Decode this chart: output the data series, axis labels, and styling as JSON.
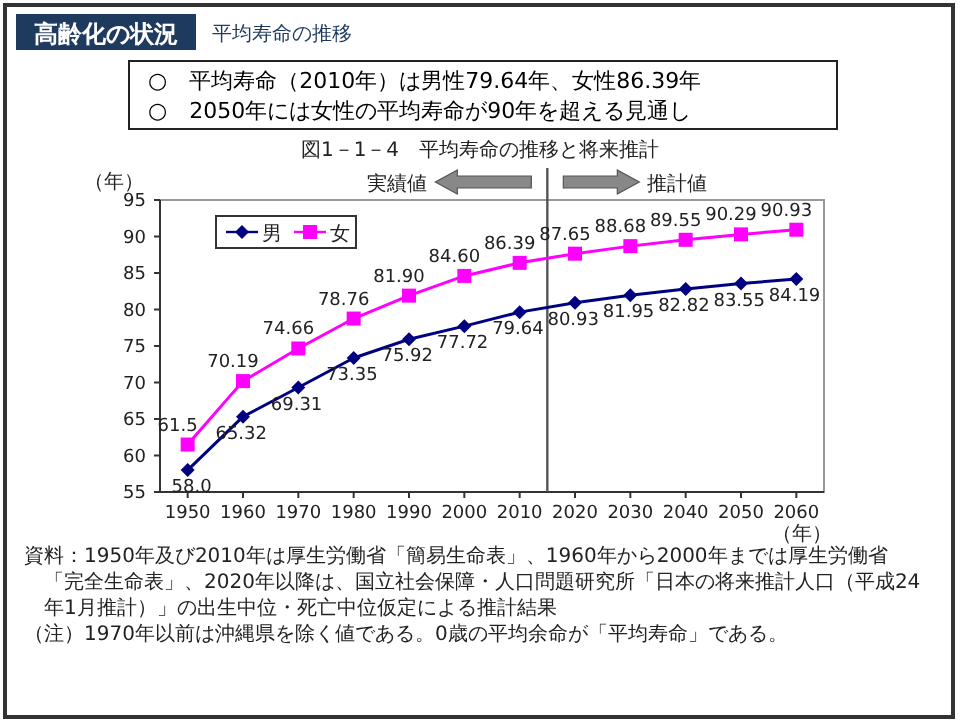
{
  "chart_data": {
    "type": "line",
    "title": "図1－1－4　平均寿命の推移と将来推計",
    "ylabel": "（年）",
    "xlabel": "（年）",
    "x": [
      1950,
      1960,
      1970,
      1980,
      1990,
      2000,
      2010,
      2020,
      2030,
      2040,
      2050,
      2060
    ],
    "xlim": [
      1945,
      2065
    ],
    "xticks": [
      1950,
      1960,
      1970,
      1980,
      1990,
      2000,
      2010,
      2020,
      2030,
      2040,
      2050,
      2060
    ],
    "ylim": [
      55,
      95
    ],
    "yticks": [
      55,
      60,
      65,
      70,
      75,
      80,
      85,
      90,
      95
    ],
    "series": [
      {
        "name": "男",
        "color": "#000080",
        "marker": "diamond",
        "values": [
          58.0,
          65.32,
          69.31,
          73.35,
          75.92,
          77.72,
          79.64,
          80.93,
          81.95,
          82.82,
          83.55,
          84.19
        ],
        "value_labels": [
          "58.0",
          "65.32",
          "69.31",
          "73.35",
          "75.92",
          "77.72",
          "79.64",
          "80.93",
          "81.95",
          "82.82",
          "83.55",
          "84.19"
        ]
      },
      {
        "name": "女",
        "color": "#ff00ff",
        "marker": "square",
        "values": [
          61.5,
          70.19,
          74.66,
          78.76,
          81.9,
          84.6,
          86.39,
          87.65,
          88.68,
          89.55,
          90.29,
          90.93
        ],
        "value_labels": [
          "61.5",
          "70.19",
          "74.66",
          "78.76",
          "81.90",
          "84.60",
          "86.39",
          "87.65",
          "88.68",
          "89.55",
          "90.29",
          "90.93"
        ]
      }
    ],
    "ref_lines": [
      {
        "axis": "x",
        "value": 2015,
        "color": "#555555"
      }
    ],
    "legend": "top left",
    "grid": false,
    "annotations": [
      "高齢化の状況",
      "平均寿命の推移",
      "○　平均寿命（2010年）は男性79.64年、女性86.39年",
      "○　2050年には女性の平均寿命が90年を超える見通し",
      "実績値",
      "推計値",
      "資料：1950年及び2010年は厚生労働省「簡易生命表」、1960年から2000年までは厚生労働省「完全生命表」、2020年以降は、国立社会保障・人口問題研究所「日本の将来推計人口（平成24年1月推計）」の出生中位・死亡中位仮定による推計結果",
      "（注）1970年以前は沖縄県を除く値である。0歳の平均余命が「平均寿命」である。"
    ]
  }
}
